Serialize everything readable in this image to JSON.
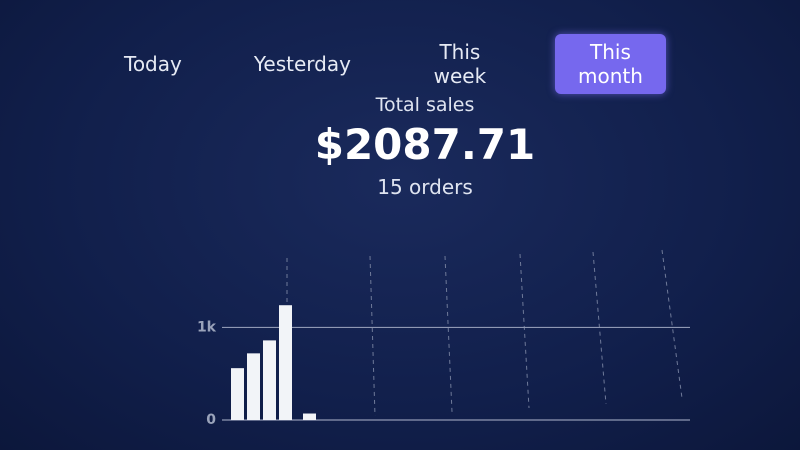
{
  "tabs": [
    "Today",
    "Yesterday",
    "This week",
    "This month"
  ],
  "active_tab": 3,
  "summary": {
    "label": "Total sales",
    "amount": "$2087.71",
    "orders": "15 orders"
  },
  "chart_data": {
    "type": "bar",
    "categories": [
      null,
      null,
      null,
      null,
      null
    ],
    "values": [
      560,
      720,
      860,
      1240,
      70
    ],
    "color": "#f2f4f8",
    "ylim": [
      0,
      1750
    ],
    "yticks": [
      0,
      {
        "value": 1000,
        "label": "1k"
      }
    ],
    "grid": true
  }
}
